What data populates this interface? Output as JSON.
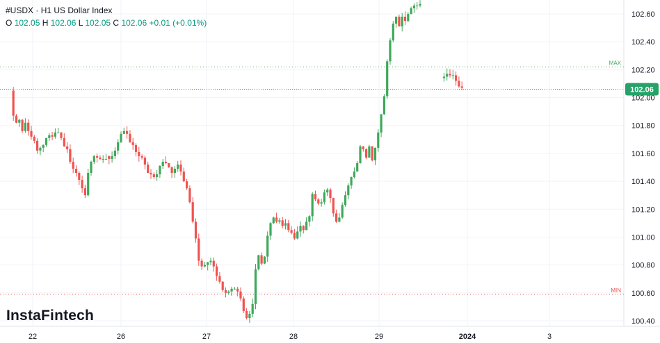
{
  "header": {
    "symbol": "#USDX",
    "separator": "·",
    "timeframe": "H1",
    "name": "US Dollar Index",
    "ohlc": {
      "o_label": "O",
      "o": "102.05",
      "h_label": "H",
      "h": "102.06",
      "l_label": "L",
      "l": "102.05",
      "c_label": "C",
      "c": "102.06",
      "change": "+0.01 (+0.01%)"
    }
  },
  "logo": "InstaFintech",
  "colors": {
    "up": "#26a69a",
    "up_fill": "#3fa85a",
    "down": "#ef5350",
    "grid": "#f0f3fa",
    "text": "#131722",
    "max_line": "#3fa85a",
    "min_line": "#ef5350",
    "price_badge": "#26a269"
  },
  "chart_data": {
    "type": "candlestick",
    "ylim": [
      100.35,
      102.72
    ],
    "y_ticks": [
      "100.40",
      "100.60",
      "100.80",
      "101.00",
      "101.20",
      "101.40",
      "101.60",
      "101.80",
      "102.00",
      "102.20",
      "102.40",
      "102.60"
    ],
    "x_ticks": [
      "22",
      "26",
      "27",
      "28",
      "29",
      "2024",
      "3"
    ],
    "last_price": "102.06",
    "max_label": "MAX",
    "max_value": 102.22,
    "min_label": "MIN",
    "min_value": 100.59,
    "segments": [
      {
        "start": 102.05,
        "seed": 11,
        "moves": [
          -0.18,
          -0.05,
          0.02,
          -0.08,
          0.06,
          -0.06,
          -0.04,
          -0.03,
          -0.07,
          0.02,
          0.02,
          0.05,
          0.02,
          -0.01,
          0.03,
          0.0,
          -0.04,
          -0.06,
          -0.02,
          -0.09,
          -0.05,
          -0.03,
          -0.05,
          -0.06,
          -0.05,
          0.16,
          0.08,
          0.04,
          -0.01,
          -0.01,
          0.0,
          0.0
        ]
      },
      {
        "start": 101.58,
        "seed": 23,
        "moves": [
          -0.02,
          0.02,
          0.04,
          0.06,
          0.06,
          0.02,
          -0.02,
          -0.06,
          -0.02,
          -0.05,
          -0.03,
          -0.01,
          -0.05,
          -0.06,
          -0.01,
          -0.02,
          0.02,
          0.06,
          0.03,
          -0.01,
          -0.03,
          -0.04,
          0.03,
          0.03,
          -0.05,
          -0.07,
          -0.05,
          -0.1,
          -0.14,
          -0.12,
          -0.16,
          -0.04,
          0.01,
          0.02,
          0.01,
          -0.04,
          -0.07,
          -0.04,
          -0.06,
          -0.02,
          0.01,
          0.02,
          0.0,
          -0.02,
          -0.05,
          -0.09,
          -0.05,
          0.03,
          0.07,
          0.25,
          0.1,
          -0.06,
          0.05,
          0.15,
          0.09,
          0.04,
          -0.03,
          0.01,
          -0.04,
          0.02,
          -0.05,
          -0.02,
          -0.04,
          0.05,
          0.04,
          -0.03,
          0.06,
          0.04,
          0.16,
          -0.04,
          -0.03,
          0.01,
          0.07,
          0.02,
          -0.06,
          -0.11,
          -0.06,
          0.03,
          0.09,
          0.07,
          0.07,
          0.06,
          0.04,
          0.06,
          0.12,
          -0.02,
          -0.06,
          0.08,
          -0.1,
          0.09,
          0.11,
          0.13,
          0.13,
          0.25,
          0.15,
          0.12,
          0.05,
          -0.07,
          0.07,
          -0.03,
          0.05,
          0.04,
          0.02,
          0.0,
          0.01
        ]
      },
      {
        "start": 102.14,
        "seed": 37,
        "moves": [
          0.01,
          0.02,
          -0.01,
          0.0,
          -0.04,
          -0.04,
          -0.01
        ]
      }
    ],
    "segment_gaps": [
      4,
      0,
      7
    ]
  }
}
